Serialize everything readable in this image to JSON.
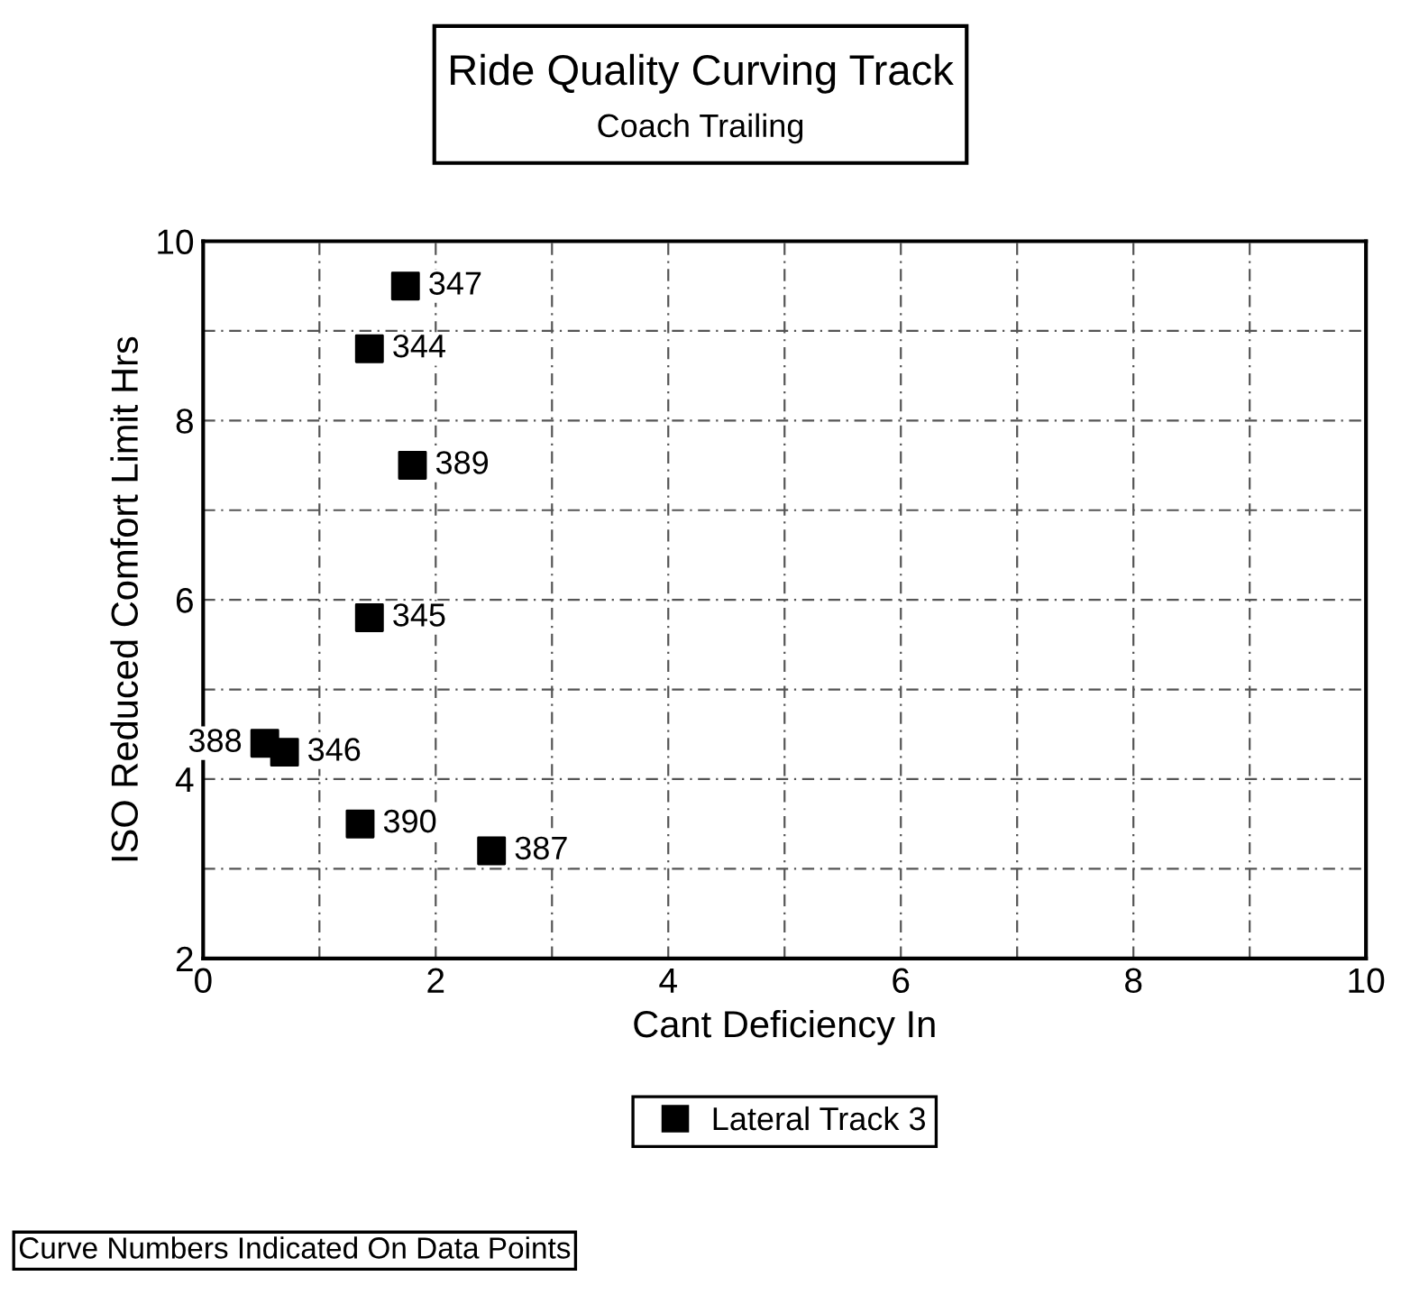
{
  "chart_data": {
    "type": "scatter",
    "title": "Ride Quality Curving Track",
    "subtitle": "Coach Trailing",
    "xlabel": "Cant Deficiency In",
    "ylabel": "ISO Reduced Comfort Limit Hrs",
    "x": [
      1.74,
      1.43,
      1.8,
      1.43,
      0.53,
      0.7,
      1.35,
      2.48
    ],
    "series": [
      {
        "name": "Lateral Track 3",
        "color": "#000000",
        "values": [
          9.5,
          8.8,
          7.5,
          5.8,
          4.4,
          4.3,
          3.5,
          3.2
        ]
      }
    ],
    "marker": "square",
    "legend": "bottom",
    "grid": true,
    "xlim": [
      0,
      10
    ],
    "ylim": [
      2,
      10
    ],
    "xticks": [
      0,
      {
        "value": 1,
        "label": null
      },
      2,
      {
        "value": 3,
        "label": null
      },
      4,
      {
        "value": 5,
        "label": null
      },
      6,
      {
        "value": 7,
        "label": null
      },
      8,
      {
        "value": 9,
        "label": null
      },
      10
    ],
    "yticks": [
      2,
      {
        "value": 3,
        "label": null
      },
      4,
      {
        "value": 5,
        "label": null
      },
      6,
      {
        "value": 7,
        "label": null
      },
      8,
      {
        "value": 9,
        "label": null
      },
      10
    ],
    "annotations": [
      {
        "text": "347",
        "x": 1.74,
        "y": 9.5
      },
      {
        "text": "344",
        "x": 1.43,
        "y": 8.8
      },
      {
        "text": "389",
        "x": 1.8,
        "y": 7.5
      },
      {
        "text": "345",
        "x": 1.43,
        "y": 5.8
      },
      {
        "text": "388",
        "x": 0.53,
        "y": 4.4
      },
      {
        "text": "346",
        "x": 0.7,
        "y": 4.3
      },
      {
        "text": "390",
        "x": 1.35,
        "y": 3.5
      },
      {
        "text": "387",
        "x": 2.48,
        "y": 3.2
      },
      "Curve Numbers Indicated On Data Points"
    ]
  }
}
